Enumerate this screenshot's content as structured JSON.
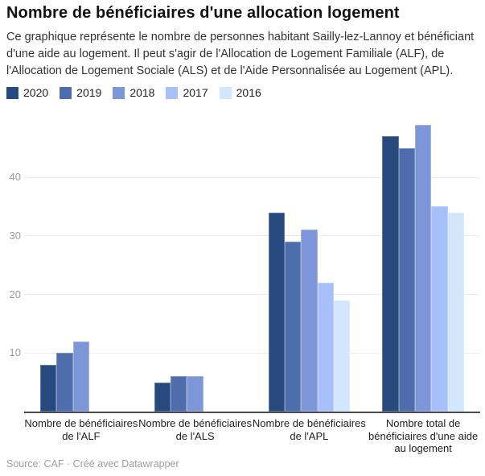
{
  "header": {
    "title": "Nombre de bénéficiaires d'une allocation logement",
    "description": "Ce graphique représente le nombre de personnes habitant Sailly-lez-Lannoy et bénéficiant d'une aide au logement. Il peut s'agir de l'Allocation de Logement Familiale (ALF), de l'Allocation de Logement Sociale (ALS) et de l'Aide Personnalisée au Logement (APL)."
  },
  "footer": {
    "source_label": "Source: CAF · Créé avec Datawrapper"
  },
  "chart_data": {
    "type": "bar",
    "title": "Nombre de bénéficiaires d'une allocation logement",
    "categories": [
      "Nombre de bénéficiaires\nde l'ALF",
      "Nombre de bénéficiaires\nde l'ALS",
      "Nombre de bénéficiaires\nde l'APL",
      "Nombre total de\nbénéficiaires d'une aide\nau logement"
    ],
    "series": [
      {
        "name": "2020",
        "color": "#264a7d",
        "values": [
          8,
          5,
          34,
          47
        ]
      },
      {
        "name": "2019",
        "color": "#4d6dad",
        "values": [
          10,
          6,
          29,
          45
        ]
      },
      {
        "name": "2018",
        "color": "#7d96d7",
        "values": [
          12,
          6,
          31,
          49
        ]
      },
      {
        "name": "2017",
        "color": "#a8c0f9",
        "values": [
          null,
          null,
          22,
          35
        ]
      },
      {
        "name": "2016",
        "color": "#d2e7fc",
        "values": [
          null,
          null,
          19,
          34
        ]
      }
    ],
    "ylim": [
      0,
      49
    ],
    "yticks": [
      10,
      20,
      30,
      40
    ],
    "grid": true,
    "legend_position": "top",
    "axis_color": "#4a4a4a",
    "gridline_color": "#ebebeb"
  }
}
